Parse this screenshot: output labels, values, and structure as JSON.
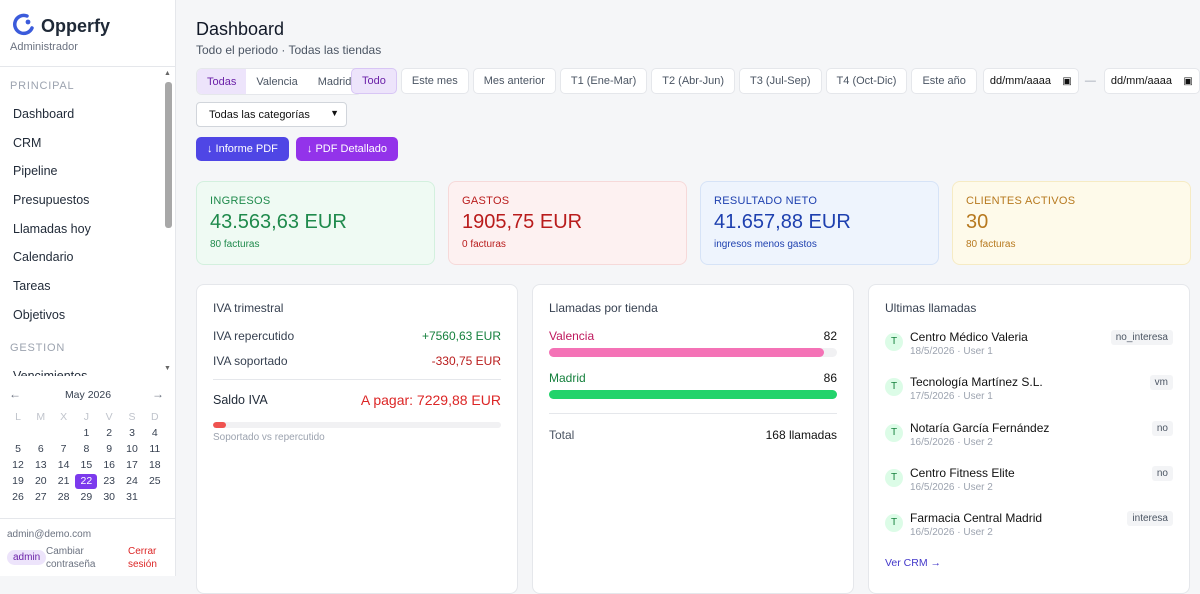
{
  "sidebar": {
    "brand": "Opperfy",
    "role": "Administrador",
    "sections": [
      {
        "title": "PRINCIPAL",
        "items": [
          "Dashboard",
          "CRM",
          "Pipeline",
          "Presupuestos",
          "Llamadas hoy",
          "Calendario",
          "Tareas",
          "Objetivos"
        ]
      },
      {
        "title": "GESTION",
        "items": [
          "Vencimientos"
        ]
      }
    ],
    "calendar": {
      "prev": "←",
      "month": "May 2026",
      "next": "→",
      "weekdays": [
        "L",
        "M",
        "X",
        "J",
        "V",
        "S",
        "D"
      ],
      "days": [
        null,
        null,
        null,
        1,
        2,
        3,
        4,
        5,
        6,
        7,
        8,
        9,
        10,
        11,
        12,
        13,
        14,
        15,
        16,
        17,
        18,
        19,
        20,
        21,
        22,
        23,
        24,
        25,
        26,
        27,
        28,
        29,
        30,
        31
      ],
      "selected_day": 22
    },
    "footer": {
      "email": "admin@demo.com",
      "badge": "admin",
      "change_password": "Cambiar contraseña",
      "logout": "Cerrar sesión"
    }
  },
  "header": {
    "title": "Dashboard",
    "subtitle": "Todo el periodo · Todas las tiendas"
  },
  "filters": {
    "stores": [
      "Todas",
      "Valencia",
      "Madrid"
    ],
    "periods": [
      "Todo",
      "Este mes",
      "Mes anterior",
      "T1 (Ene-Mar)",
      "T2 (Abr-Jun)",
      "T3 (Jul-Sep)",
      "T4 (Oct-Dic)",
      "Este año"
    ],
    "date_from": "dd/mm/aaaa",
    "date_sep": "—",
    "date_to": "dd/mm/aaaa",
    "category": "Todas las categorías",
    "buttons": [
      "↓ Informe PDF",
      "↓ PDF Detallado"
    ]
  },
  "kpis": [
    {
      "label": "INGRESOS",
      "value": "43.563,63 EUR",
      "sub": "80 facturas",
      "color": "#1f8a4c",
      "bg": "#effaf3",
      "border": "#d3f0de"
    },
    {
      "label": "GASTOS",
      "value": "1905,75 EUR",
      "sub": "0 facturas",
      "color": "#b91c1c",
      "bg": "#fdf1f1",
      "border": "#f6d9d9"
    },
    {
      "label": "RESULTADO NETO",
      "value": "41.657,88 EUR",
      "sub": "ingresos menos gastos",
      "color": "#1e40af",
      "bg": "#eef4fd",
      "border": "#d6e3f7"
    },
    {
      "label": "CLIENTES ACTIVOS",
      "value": "30",
      "sub": "80 facturas",
      "color": "#b7791f",
      "bg": "#fefaea",
      "border": "#f6ebc4"
    }
  ],
  "iva": {
    "title": "IVA trimestral",
    "rows": [
      {
        "label": "IVA repercutido",
        "value": "+7560,63 EUR",
        "color": "#15803d"
      },
      {
        "label": "IVA soportado",
        "value": "-330,75 EUR",
        "color": "#b91c1c"
      }
    ],
    "balance_label": "Saldo IVA",
    "balance_value": "A pagar: 7229,88 EUR",
    "progress": 4.4,
    "progress_caption": "Soportado vs repercutido"
  },
  "calls_by_store": {
    "title": "Llamadas por tienda",
    "stores": [
      {
        "name": "Valencia",
        "value": 82,
        "color": "#f472b6",
        "text_color": "#be185d"
      },
      {
        "name": "Madrid",
        "value": 86,
        "color": "#22d36b",
        "text_color": "#15803d"
      }
    ],
    "total_label": "Total",
    "total_value": "168 llamadas"
  },
  "recent_calls": {
    "title": "Ultimas llamadas",
    "items": [
      {
        "initial": "T",
        "name": "Centro Médico Valeria",
        "meta": "18/5/2026 · User 1",
        "tag": "no_interesa"
      },
      {
        "initial": "T",
        "name": "Tecnología Martínez S.L.",
        "meta": "17/5/2026 · User 1",
        "tag": "vm"
      },
      {
        "initial": "T",
        "name": "Notaría García Fernández",
        "meta": "16/5/2026 · User 2",
        "tag": "no"
      },
      {
        "initial": "T",
        "name": "Centro Fitness Elite",
        "meta": "16/5/2026 · User 2",
        "tag": "no"
      },
      {
        "initial": "T",
        "name": "Farmacia Central Madrid",
        "meta": "16/5/2026 · User 2",
        "tag": "interesa"
      }
    ],
    "link": "Ver CRM →"
  }
}
